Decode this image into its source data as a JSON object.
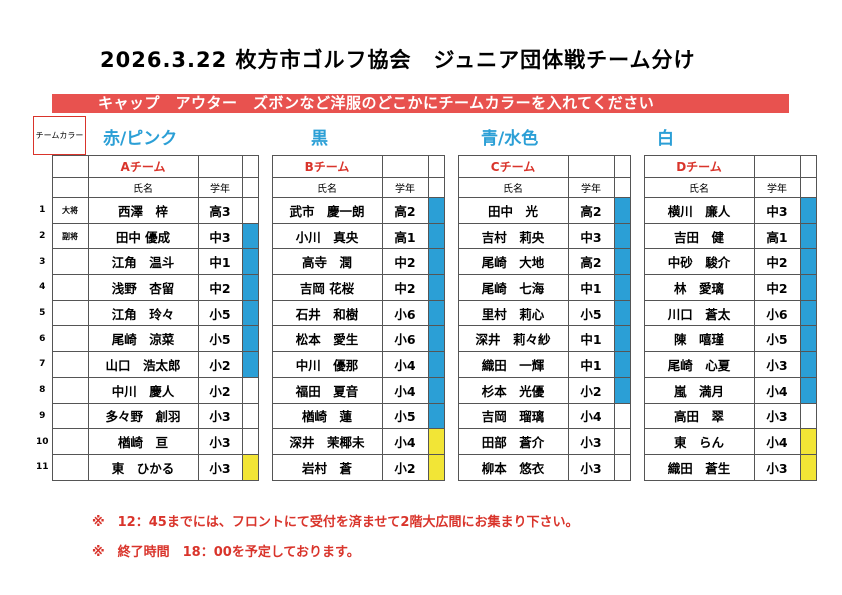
{
  "title": "2026.3.22 枚方市ゴルフ協会　ジュニア団体戦チーム分け",
  "banner": "キャップ　アウター　ズボンなど洋服のどこかにチームカラーを入れてください",
  "team_color_label": "チームカラー",
  "team_colors": [
    "赤/ピンク",
    "黒",
    "青/水色",
    "白"
  ],
  "teams": [
    {
      "name": "Aチーム",
      "col_name": "氏名",
      "col_grade": "学年",
      "players": [
        {
          "name": "西澤　梓",
          "grade": "高3"
        },
        {
          "name": "田中 優成",
          "grade": "中3"
        },
        {
          "name": "江角　温斗",
          "grade": "中1"
        },
        {
          "name": "浅野　杏留",
          "grade": "中2"
        },
        {
          "name": "江角　玲々",
          "grade": "小5"
        },
        {
          "name": "尾崎　涼菜",
          "grade": "小5"
        },
        {
          "name": "山口　浩太郎",
          "grade": "小2"
        },
        {
          "name": "中川　慶人",
          "grade": "小2"
        },
        {
          "name": "多々野　創羽",
          "grade": "小3"
        },
        {
          "name": "楢崎　亘",
          "grade": "小3"
        },
        {
          "name": "東　ひかる",
          "grade": "小3"
        }
      ]
    },
    {
      "name": "Bチーム",
      "col_name": "氏名",
      "col_grade": "学年",
      "players": [
        {
          "name": "武市　慶一朗",
          "grade": "高2"
        },
        {
          "name": "小川　真央",
          "grade": "高1"
        },
        {
          "name": "高寺　潤",
          "grade": "中2"
        },
        {
          "name": "吉岡 花桜",
          "grade": "中2"
        },
        {
          "name": "石井　和樹",
          "grade": "小6"
        },
        {
          "name": "松本　愛生",
          "grade": "小6"
        },
        {
          "name": "中川　優那",
          "grade": "小4"
        },
        {
          "name": "福田　夏音",
          "grade": "小4"
        },
        {
          "name": "楢崎　蓮",
          "grade": "小5"
        },
        {
          "name": "深井　茉椰未",
          "grade": "小4"
        },
        {
          "name": "岩村　蒼",
          "grade": "小2"
        }
      ]
    },
    {
      "name": "Cチーム",
      "col_name": "氏名",
      "col_grade": "学年",
      "players": [
        {
          "name": "田中　光",
          "grade": "高2"
        },
        {
          "name": "吉村　莉央",
          "grade": "中3"
        },
        {
          "name": "尾崎　大地",
          "grade": "高2"
        },
        {
          "name": "尾崎　七海",
          "grade": "中1"
        },
        {
          "name": "里村　莉心",
          "grade": "小5"
        },
        {
          "name": "深井　莉々紗",
          "grade": "中1"
        },
        {
          "name": "織田　一輝",
          "grade": "中1"
        },
        {
          "name": "杉本　光優",
          "grade": "小2"
        },
        {
          "name": "吉岡　瑠璃",
          "grade": "小4"
        },
        {
          "name": "田部　蒼介",
          "grade": "小3"
        },
        {
          "name": "柳本　悠衣",
          "grade": "小3"
        }
      ]
    },
    {
      "name": "Dチーム",
      "col_name": "氏名",
      "col_grade": "学年",
      "players": [
        {
          "name": "横川　廉人",
          "grade": "中3"
        },
        {
          "name": "吉田　健",
          "grade": "高1"
        },
        {
          "name": "中砂　駿介",
          "grade": "中2"
        },
        {
          "name": "林　愛璃",
          "grade": "中2"
        },
        {
          "name": "川口　蒼太",
          "grade": "小6"
        },
        {
          "name": "陳　嘻瑾",
          "grade": "小5"
        },
        {
          "name": "尾崎　心夏",
          "grade": "小3"
        },
        {
          "name": "嵐　満月",
          "grade": "小4"
        },
        {
          "name": "高田　翠",
          "grade": "小3"
        },
        {
          "name": "東　らん",
          "grade": "小4"
        },
        {
          "name": "織田　蒼生",
          "grade": "小3"
        }
      ]
    }
  ],
  "row_numbers": [
    "1",
    "2",
    "3",
    "4",
    "5",
    "6",
    "7",
    "8",
    "9",
    "10",
    "11"
  ],
  "roles": [
    "大将",
    "副将"
  ],
  "notes": [
    "※　12：45までには、フロントにて受付を済ませて2階大広間にお集まり下さい。",
    "※　終了時間　18：00を予定しております。"
  ],
  "colors": {
    "accent_red": "#e8524f",
    "blue": "#2b9fd6",
    "yellow": "#f2e536"
  },
  "stripe_colors": {
    "A": [
      "none",
      "blue",
      "blue",
      "blue",
      "blue",
      "blue",
      "blue",
      "none",
      "none",
      "none",
      "yellow"
    ],
    "B": [
      "blue",
      "blue",
      "blue",
      "blue",
      "blue",
      "blue",
      "blue",
      "blue",
      "blue",
      "yellow",
      "yellow"
    ],
    "C": [
      "blue",
      "blue",
      "blue",
      "blue",
      "blue",
      "blue",
      "blue",
      "blue",
      "none",
      "none",
      "none"
    ],
    "D": [
      "blue",
      "blue",
      "blue",
      "blue",
      "blue",
      "blue",
      "blue",
      "blue",
      "none",
      "yellow",
      "yellow"
    ]
  }
}
